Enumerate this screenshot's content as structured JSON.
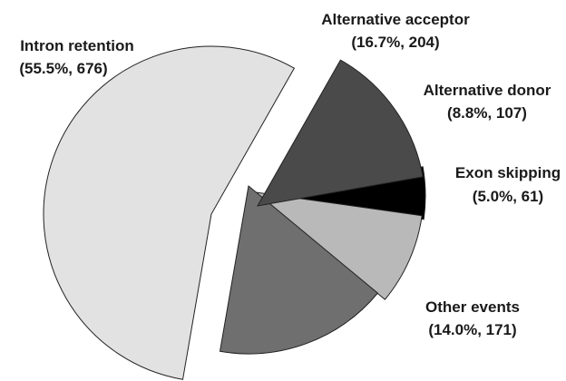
{
  "chart_data": {
    "type": "pie",
    "title": "",
    "slices": [
      {
        "name": "Exon skipping",
        "percent": 5.0,
        "count": 61,
        "label": "Exon skipping",
        "value_label": "(5.0%, 61)",
        "color": "#000000"
      },
      {
        "name": "Alternative donor",
        "percent": 8.8,
        "count": 107,
        "label": "Alternative donor",
        "value_label": "(8.8%, 107)",
        "color": "#b9b9b9"
      },
      {
        "name": "Alternative acceptor",
        "percent": 16.7,
        "count": 204,
        "label": "Alternative acceptor",
        "value_label": "(16.7%, 204)",
        "color": "#6f6f6f"
      },
      {
        "name": "Intron retention",
        "percent": 55.5,
        "count": 676,
        "label": "Intron retention",
        "value_label": "(55.5%, 676)",
        "color": "#e2e2e2"
      },
      {
        "name": "Other events",
        "percent": 14.0,
        "count": 171,
        "label": "Other events",
        "value_label": "(14.0%, 171)",
        "color": "#4a4a4a"
      }
    ],
    "exploded": true,
    "legend": "none"
  }
}
